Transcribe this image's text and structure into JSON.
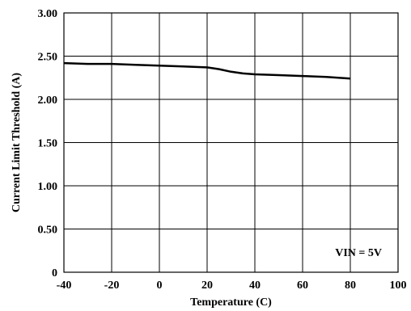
{
  "chart_data": {
    "type": "line",
    "xlabel": "Temperature (C)",
    "ylabel": "Current Limit Threshold (A)",
    "xlim": [
      -40,
      100
    ],
    "ylim": [
      0,
      3.0
    ],
    "x_ticks": [
      "-40",
      "-20",
      "0",
      "20",
      "40",
      "60",
      "80",
      "100"
    ],
    "y_ticks": [
      "0",
      "0.50",
      "1.00",
      "1.50",
      "2.00",
      "2.50",
      "3.00"
    ],
    "grid": true,
    "annotation": "VIN = 5V",
    "series": [
      {
        "x": [
          -40,
          -30,
          -20,
          -10,
          0,
          10,
          20,
          25,
          30,
          35,
          40,
          50,
          60,
          70,
          80
        ],
        "y": [
          2.42,
          2.41,
          2.41,
          2.4,
          2.39,
          2.38,
          2.37,
          2.35,
          2.32,
          2.3,
          2.29,
          2.28,
          2.27,
          2.26,
          2.24
        ]
      }
    ]
  }
}
